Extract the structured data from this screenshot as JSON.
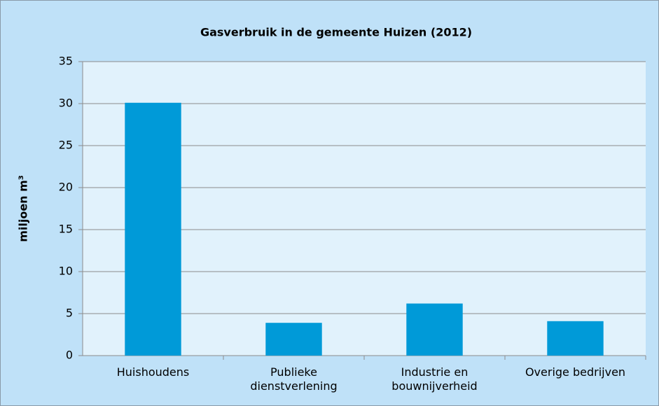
{
  "chart_data": {
    "type": "bar",
    "title": "Gasverbruik in de gemeente Huizen (2012)",
    "y_label": "miljoen m³",
    "categories": [
      "Huishoudens",
      "Publieke\ndienstverlening",
      "Industrie en\nbouwnijverheid",
      "Overige bedrijven"
    ],
    "values": [
      30.1,
      3.9,
      6.2,
      4.1
    ],
    "color": "#009ad8",
    "ylim": [
      0,
      35
    ],
    "yticks": [
      0,
      5,
      10,
      15,
      20,
      25,
      30,
      35
    ],
    "grid": true
  }
}
